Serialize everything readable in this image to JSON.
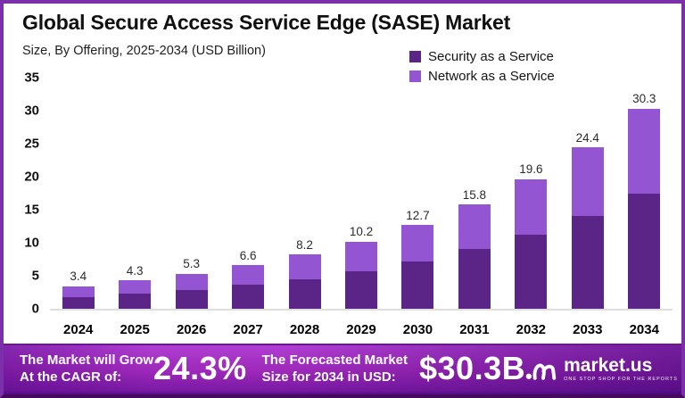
{
  "header": {
    "title": "Global Secure Access Service Edge (SASE) Market",
    "subtitle": "Size, By Offering, 2025-2034 (USD Billion)"
  },
  "legend": [
    {
      "label": "Security as a Service",
      "color": "#5b2487"
    },
    {
      "label": "Network as a Service",
      "color": "#9455d3"
    }
  ],
  "chart_data": {
    "type": "bar",
    "stacked": true,
    "title": "Global Secure Access Service Edge (SASE) Market",
    "subtitle": "Size, By Offering, 2025-2034 (USD Billion)",
    "unit": "USD Billion",
    "categories": [
      "2024",
      "2025",
      "2026",
      "2027",
      "2028",
      "2029",
      "2030",
      "2031",
      "2032",
      "2033",
      "2034"
    ],
    "series": [
      {
        "name": "Security as a Service",
        "color": "#5b2487",
        "values": [
          1.8,
          2.3,
          2.9,
          3.6,
          4.5,
          5.7,
          7.2,
          9.0,
          11.2,
          14.0,
          17.5
        ]
      },
      {
        "name": "Network as a Service",
        "color": "#9455d3",
        "values": [
          1.6,
          2.0,
          2.4,
          3.0,
          3.7,
          4.5,
          5.5,
          6.8,
          8.4,
          10.4,
          12.8
        ]
      }
    ],
    "totals": [
      3.4,
      4.3,
      5.3,
      6.6,
      8.2,
      10.2,
      12.7,
      15.8,
      19.6,
      24.4,
      30.3
    ],
    "total_labels": [
      "3.4",
      "4.3",
      "5.3",
      "6.6",
      "8.2",
      "10.2",
      "12.7",
      "15.8",
      "19.6",
      "24.4",
      "30.3"
    ],
    "ylim": [
      0,
      35
    ],
    "yticks": [
      0,
      5,
      10,
      15,
      20,
      25,
      30,
      35
    ],
    "grid": false,
    "legend_position": "top-right"
  },
  "banner": {
    "cagr_label_line1": "The Market will Grow",
    "cagr_label_line2": "At the CAGR of:",
    "cagr_value": "24.3%",
    "size_label_line1": "The Forecasted Market",
    "size_label_line2": "Size for 2034 in USD:",
    "size_value": "$30.3B",
    "logo_text": "market.us",
    "logo_tagline": "ONE STOP SHOP FOR THE REPORTS"
  },
  "colors": {
    "frame_border": "#7b2fa8",
    "security": "#5b2487",
    "network": "#9455d3",
    "banner_purple": "#9c27b8",
    "axis_line": "#dedede"
  }
}
